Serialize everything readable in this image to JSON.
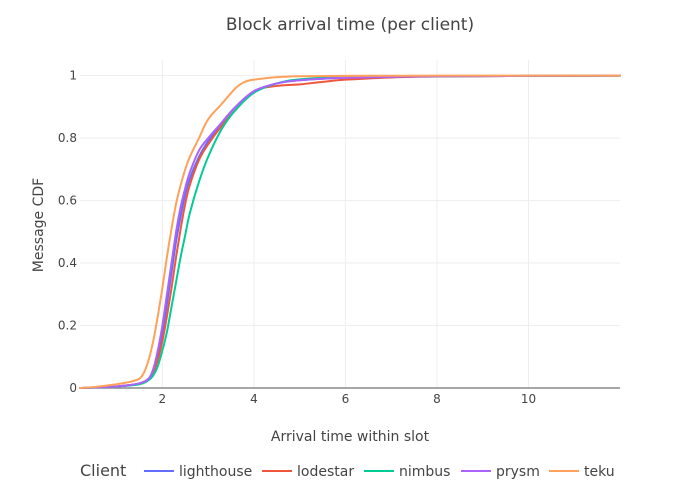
{
  "chart_data": {
    "type": "line",
    "title": "Block arrival time (per client)",
    "xlabel": "Arrival time within slot",
    "ylabel": "Message CDF",
    "xlim": [
      0.2,
      12
    ],
    "ylim": [
      0,
      1.05
    ],
    "xticks": [
      2,
      4,
      6,
      8,
      10
    ],
    "yticks": [
      0,
      0.2,
      0.4,
      0.6,
      0.8,
      1
    ],
    "ytick_labels": [
      "0",
      "0.2",
      "0.4",
      "0.6",
      "0.8",
      "1"
    ],
    "grid": true,
    "legend": {
      "title": "Client",
      "placement": "bottom"
    },
    "series": [
      {
        "name": "lighthouse",
        "color": "#636efa",
        "x": [
          0.2,
          1.0,
          1.5,
          1.7,
          1.8,
          1.9,
          2.0,
          2.1,
          2.2,
          2.3,
          2.4,
          2.5,
          2.6,
          2.8,
          3.0,
          3.3,
          3.6,
          4.0,
          4.5,
          5.0,
          6.0,
          8.0,
          10.0,
          12.0
        ],
        "y": [
          0,
          0.005,
          0.015,
          0.03,
          0.06,
          0.11,
          0.18,
          0.27,
          0.37,
          0.47,
          0.55,
          0.62,
          0.67,
          0.74,
          0.79,
          0.85,
          0.9,
          0.95,
          0.975,
          0.985,
          0.993,
          0.998,
          0.999,
          1.0
        ]
      },
      {
        "name": "lodestar",
        "color": "#ef553b",
        "x": [
          0.2,
          1.0,
          1.5,
          1.7,
          1.8,
          1.9,
          2.0,
          2.1,
          2.2,
          2.3,
          2.4,
          2.5,
          2.6,
          2.8,
          3.0,
          3.3,
          3.6,
          4.0,
          4.5,
          5.0,
          5.5,
          6.0,
          7.0,
          8.0,
          10.0,
          12.0
        ],
        "y": [
          0,
          0.005,
          0.015,
          0.03,
          0.05,
          0.09,
          0.15,
          0.23,
          0.32,
          0.42,
          0.51,
          0.59,
          0.65,
          0.73,
          0.78,
          0.84,
          0.89,
          0.95,
          0.967,
          0.972,
          0.98,
          0.987,
          0.994,
          0.997,
          0.999,
          1.0
        ]
      },
      {
        "name": "nimbus",
        "color": "#00cc96",
        "x": [
          0.2,
          1.0,
          1.5,
          1.7,
          1.8,
          1.9,
          2.0,
          2.1,
          2.2,
          2.3,
          2.4,
          2.5,
          2.6,
          2.8,
          3.0,
          3.3,
          3.6,
          4.0,
          4.5,
          5.0,
          6.0,
          8.0,
          10.0,
          12.0
        ],
        "y": [
          0,
          0.005,
          0.012,
          0.025,
          0.04,
          0.07,
          0.12,
          0.18,
          0.26,
          0.34,
          0.42,
          0.49,
          0.56,
          0.66,
          0.74,
          0.83,
          0.89,
          0.945,
          0.975,
          0.988,
          0.995,
          0.998,
          0.999,
          1.0
        ]
      },
      {
        "name": "prysm",
        "color": "#ab63fa",
        "x": [
          0.2,
          1.0,
          1.5,
          1.7,
          1.8,
          1.9,
          2.0,
          2.1,
          2.2,
          2.3,
          2.4,
          2.5,
          2.6,
          2.8,
          3.0,
          3.3,
          3.6,
          4.0,
          4.5,
          5.0,
          6.0,
          8.0,
          10.0,
          12.0
        ],
        "y": [
          0,
          0.005,
          0.015,
          0.03,
          0.06,
          0.12,
          0.2,
          0.3,
          0.4,
          0.5,
          0.58,
          0.64,
          0.69,
          0.76,
          0.8,
          0.85,
          0.9,
          0.95,
          0.975,
          0.985,
          0.993,
          0.998,
          0.999,
          1.0
        ]
      },
      {
        "name": "teku",
        "color": "#ffa15a",
        "x": [
          0.2,
          0.5,
          1.0,
          1.3,
          1.5,
          1.6,
          1.7,
          1.8,
          1.9,
          2.0,
          2.1,
          2.2,
          2.3,
          2.4,
          2.5,
          2.6,
          2.8,
          3.0,
          3.3,
          3.6,
          3.8,
          4.0,
          4.5,
          5.0,
          6.0,
          8.0,
          10.0,
          12.0
        ],
        "y": [
          0,
          0.003,
          0.012,
          0.02,
          0.03,
          0.05,
          0.09,
          0.15,
          0.23,
          0.32,
          0.42,
          0.51,
          0.59,
          0.65,
          0.7,
          0.74,
          0.8,
          0.86,
          0.91,
          0.96,
          0.98,
          0.987,
          0.995,
          0.998,
          0.999,
          1.0,
          1.0,
          1.0
        ]
      }
    ]
  }
}
